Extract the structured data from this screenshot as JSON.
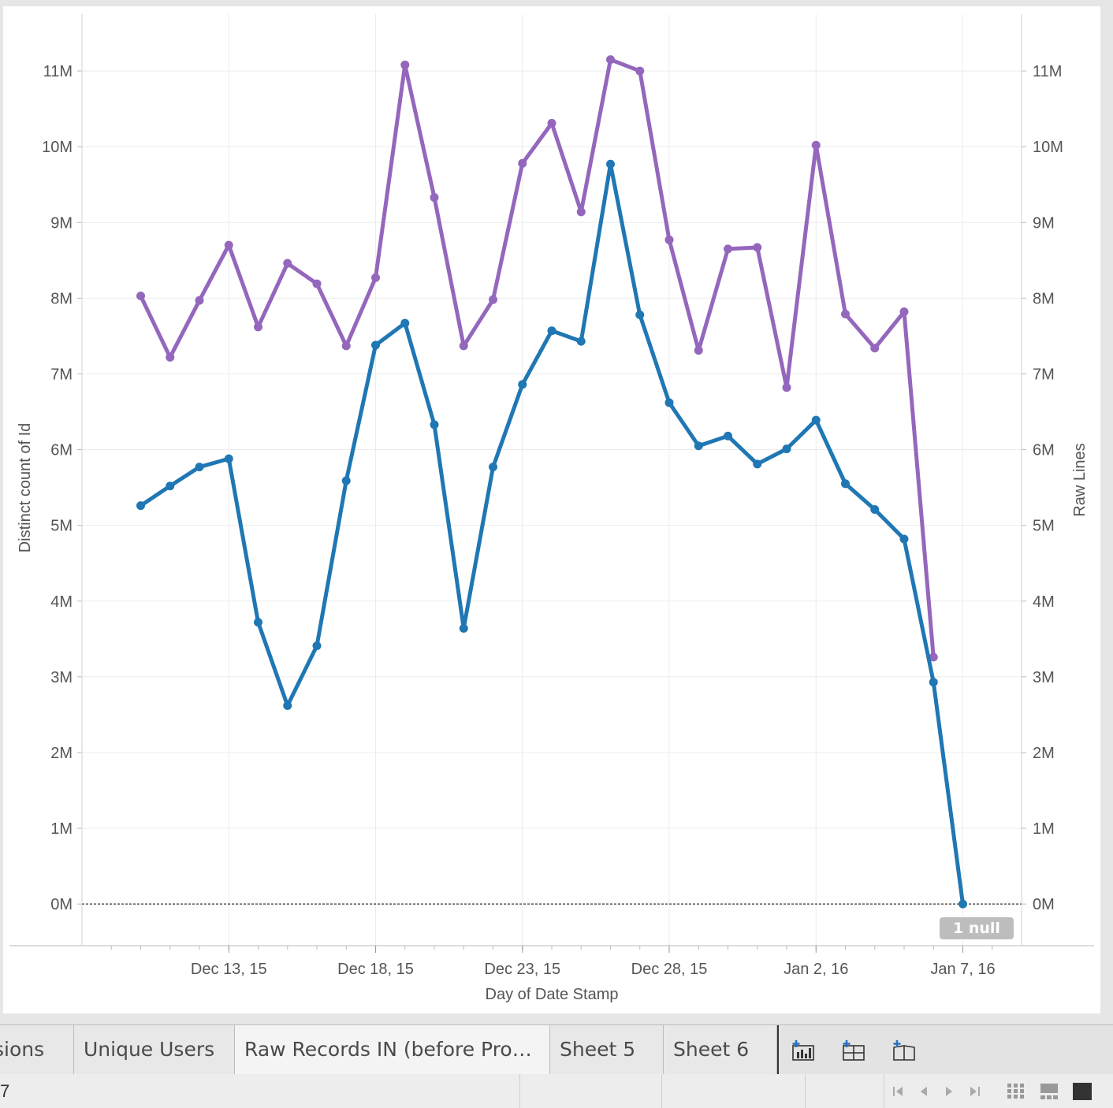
{
  "chart_data": {
    "type": "line",
    "x_label": "Day of Date Stamp",
    "y_left_label": "Distinct count of Id",
    "y_right_label": "Raw Lines",
    "y_ticks": [
      "0M",
      "1M",
      "2M",
      "3M",
      "4M",
      "5M",
      "6M",
      "7M",
      "8M",
      "9M",
      "10M",
      "11M"
    ],
    "ylim": [
      -0.55,
      11.75
    ],
    "x_tick_labels": [
      {
        "date": "2015-12-13",
        "label": "Dec 13, 15"
      },
      {
        "date": "2015-12-18",
        "label": "Dec 18, 15"
      },
      {
        "date": "2015-12-23",
        "label": "Dec 23, 15"
      },
      {
        "date": "2015-12-28",
        "label": "Dec 28, 15"
      },
      {
        "date": "2016-01-02",
        "label": "Jan 2, 16"
      },
      {
        "date": "2016-01-07",
        "label": "Jan 7, 16"
      }
    ],
    "x_range": [
      "2015-12-08",
      "2016-01-09"
    ],
    "null_badge": "1 null",
    "series": [
      {
        "name": "Distinct count of Id",
        "color": "#1f77b4",
        "axis": "left",
        "points": [
          [
            "2015-12-10",
            5.26
          ],
          [
            "2015-12-11",
            5.52
          ],
          [
            "2015-12-12",
            5.77
          ],
          [
            "2015-12-13",
            5.88
          ],
          [
            "2015-12-14",
            3.72
          ],
          [
            "2015-12-15",
            2.62
          ],
          [
            "2015-12-16",
            3.41
          ],
          [
            "2015-12-17",
            5.59
          ],
          [
            "2015-12-18",
            7.38
          ],
          [
            "2015-12-19",
            7.67
          ],
          [
            "2015-12-20",
            6.33
          ],
          [
            "2015-12-21",
            3.64
          ],
          [
            "2015-12-22",
            5.77
          ],
          [
            "2015-12-23",
            6.86
          ],
          [
            "2015-12-24",
            7.57
          ],
          [
            "2015-12-25",
            7.43
          ],
          [
            "2015-12-26",
            9.77
          ],
          [
            "2015-12-27",
            7.78
          ],
          [
            "2015-12-28",
            6.62
          ],
          [
            "2015-12-29",
            6.05
          ],
          [
            "2015-12-30",
            6.18
          ],
          [
            "2015-12-31",
            5.81
          ],
          [
            "2016-01-01",
            6.01
          ],
          [
            "2016-01-02",
            6.39
          ],
          [
            "2016-01-03",
            5.55
          ],
          [
            "2016-01-04",
            5.21
          ],
          [
            "2016-01-05",
            4.82
          ],
          [
            "2016-01-06",
            2.93
          ],
          [
            "2016-01-07",
            0.0
          ]
        ]
      },
      {
        "name": "Raw Lines",
        "color": "#9467bd",
        "axis": "right",
        "points": [
          [
            "2015-12-10",
            8.03
          ],
          [
            "2015-12-11",
            7.22
          ],
          [
            "2015-12-12",
            7.97
          ],
          [
            "2015-12-13",
            8.7
          ],
          [
            "2015-12-14",
            7.62
          ],
          [
            "2015-12-15",
            8.46
          ],
          [
            "2015-12-16",
            8.19
          ],
          [
            "2015-12-17",
            7.37
          ],
          [
            "2015-12-18",
            8.27
          ],
          [
            "2015-12-19",
            11.08
          ],
          [
            "2015-12-20",
            9.33
          ],
          [
            "2015-12-21",
            7.37
          ],
          [
            "2015-12-22",
            7.98
          ],
          [
            "2015-12-23",
            9.78
          ],
          [
            "2015-12-24",
            10.31
          ],
          [
            "2015-12-25",
            9.14
          ],
          [
            "2015-12-26",
            11.15
          ],
          [
            "2015-12-27",
            11.0
          ],
          [
            "2015-12-28",
            8.77
          ],
          [
            "2015-12-29",
            7.31
          ],
          [
            "2015-12-30",
            8.65
          ],
          [
            "2015-12-31",
            8.67
          ],
          [
            "2016-01-01",
            6.82
          ],
          [
            "2016-01-02",
            10.02
          ],
          [
            "2016-01-03",
            7.79
          ],
          [
            "2016-01-04",
            7.34
          ],
          [
            "2016-01-05",
            7.82
          ],
          [
            "2016-01-06",
            3.26
          ]
        ]
      }
    ],
    "grid": true
  },
  "tabs": [
    {
      "label": "sions"
    },
    {
      "label": "Unique Users"
    },
    {
      "label": "Raw Records IN (before Pro…"
    },
    {
      "label": "Sheet 5"
    },
    {
      "label": "Sheet 6"
    }
  ],
  "tab_tools": [
    "new-worksheet-icon",
    "new-dashboard-icon",
    "new-story-icon"
  ],
  "status": {
    "left_text": "7"
  },
  "colors": {
    "blue_series": "#1f77b4",
    "purple_series": "#9467bd"
  }
}
